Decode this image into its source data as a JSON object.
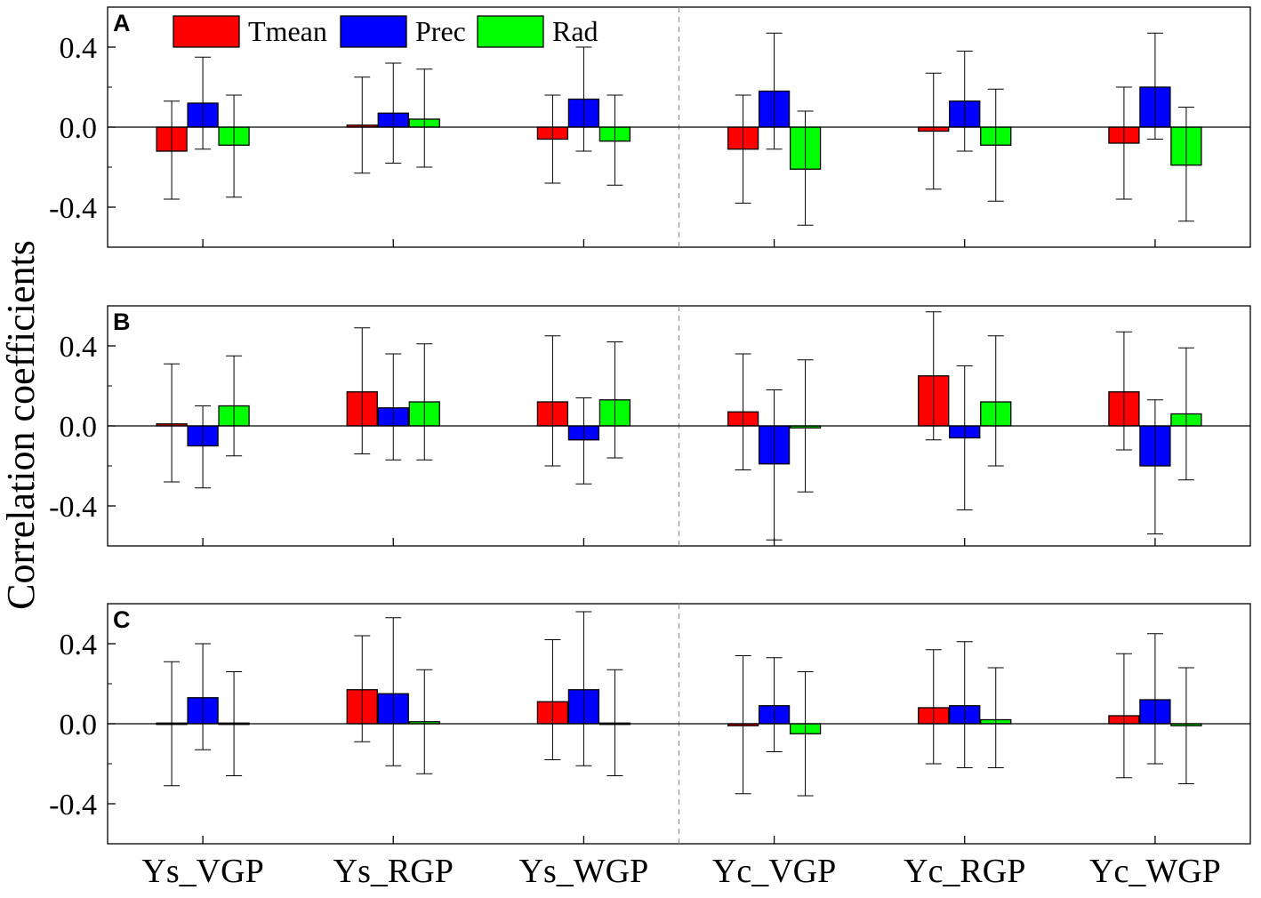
{
  "chart_data": {
    "type": "bar",
    "ylabel": "Correlation coefficients",
    "categories": [
      "Ys_VGP",
      "Ys_RGP",
      "Ys_WGP",
      "Yc_VGP",
      "Yc_RGP",
      "Yc_WGP"
    ],
    "ylim": [
      -0.6,
      0.6
    ],
    "yticks": [
      {
        "value": 0.4,
        "label": "0.4"
      },
      {
        "value": 0.0,
        "label": "0.0"
      },
      {
        "value": -0.4,
        "label": "-0.4"
      }
    ],
    "legend": {
      "placement": "top-left",
      "entries": [
        {
          "name": "Tmean",
          "color": "#ff0000"
        },
        {
          "name": "Prec",
          "color": "#0000ff"
        },
        {
          "name": "Rad",
          "color": "#00ff00"
        }
      ]
    },
    "divider_after_category": 3,
    "panels": [
      {
        "label": "A",
        "series": [
          {
            "name": "Tmean",
            "values": [
              -0.12,
              0.01,
              -0.06,
              -0.11,
              -0.02,
              -0.08
            ],
            "err_low": [
              -0.36,
              -0.23,
              -0.28,
              -0.38,
              -0.31,
              -0.36
            ],
            "err_high": [
              0.13,
              0.25,
              0.16,
              0.16,
              0.27,
              0.2
            ]
          },
          {
            "name": "Prec",
            "values": [
              0.12,
              0.07,
              0.14,
              0.18,
              0.13,
              0.2
            ],
            "err_low": [
              -0.11,
              -0.18,
              -0.12,
              -0.11,
              -0.12,
              -0.06
            ],
            "err_high": [
              0.35,
              0.32,
              0.4,
              0.47,
              0.38,
              0.47
            ]
          },
          {
            "name": "Rad",
            "values": [
              -0.09,
              0.04,
              -0.07,
              -0.21,
              -0.09,
              -0.19
            ],
            "err_low": [
              -0.35,
              -0.2,
              -0.29,
              -0.49,
              -0.37,
              -0.47
            ],
            "err_high": [
              0.16,
              0.29,
              0.16,
              0.08,
              0.19,
              0.1
            ]
          }
        ]
      },
      {
        "label": "B",
        "series": [
          {
            "name": "Tmean",
            "values": [
              0.01,
              0.17,
              0.12,
              0.07,
              0.25,
              0.17
            ],
            "err_low": [
              -0.28,
              -0.14,
              -0.2,
              -0.22,
              -0.07,
              -0.12
            ],
            "err_high": [
              0.31,
              0.49,
              0.45,
              0.36,
              0.57,
              0.47
            ]
          },
          {
            "name": "Prec",
            "values": [
              -0.1,
              0.09,
              -0.07,
              -0.19,
              -0.06,
              -0.2
            ],
            "err_low": [
              -0.31,
              -0.17,
              -0.29,
              -0.57,
              -0.42,
              -0.54
            ],
            "err_high": [
              0.1,
              0.36,
              0.14,
              0.18,
              0.3,
              0.13
            ]
          },
          {
            "name": "Rad",
            "values": [
              0.1,
              0.12,
              0.13,
              -0.01,
              0.12,
              0.06
            ],
            "err_low": [
              -0.15,
              -0.17,
              -0.16,
              -0.33,
              -0.2,
              -0.27
            ],
            "err_high": [
              0.35,
              0.41,
              0.42,
              0.33,
              0.45,
              0.39
            ]
          }
        ]
      },
      {
        "label": "C",
        "series": [
          {
            "name": "Tmean",
            "values": [
              0.0,
              0.17,
              0.11,
              -0.01,
              0.08,
              0.04
            ],
            "err_low": [
              -0.31,
              -0.09,
              -0.18,
              -0.35,
              -0.2,
              -0.27
            ],
            "err_high": [
              0.31,
              0.44,
              0.42,
              0.34,
              0.37,
              0.35
            ]
          },
          {
            "name": "Prec",
            "values": [
              0.13,
              0.15,
              0.17,
              0.09,
              0.09,
              0.12
            ],
            "err_low": [
              -0.13,
              -0.21,
              -0.21,
              -0.14,
              -0.22,
              -0.2
            ],
            "err_high": [
              0.4,
              0.53,
              0.56,
              0.33,
              0.41,
              0.45
            ]
          },
          {
            "name": "Rad",
            "values": [
              0.0,
              0.01,
              0.0,
              -0.05,
              0.02,
              -0.01
            ],
            "err_low": [
              -0.26,
              -0.25,
              -0.26,
              -0.36,
              -0.22,
              -0.3
            ],
            "err_high": [
              0.26,
              0.27,
              0.27,
              0.26,
              0.28,
              0.28
            ]
          }
        ]
      }
    ]
  }
}
